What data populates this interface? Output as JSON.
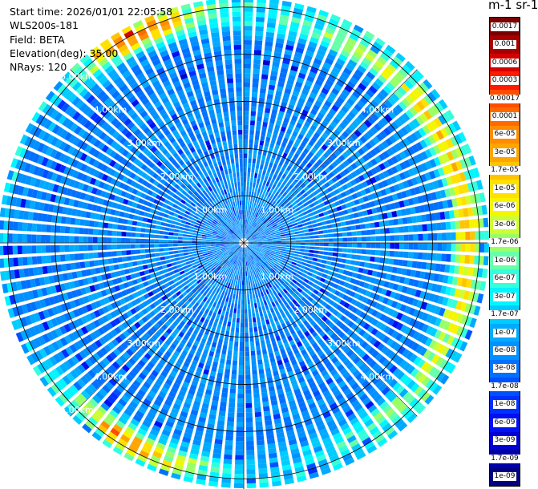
{
  "header": {
    "start_time": "Start time: 2026/01/01 22:05:58",
    "instrument": "WLS200s-181",
    "field": "Field: BETA",
    "elevation": "Elevation(deg): 35.00",
    "nrays": "NRays: 120"
  },
  "colorbar": {
    "title": "m-1 sr-1",
    "labels": [
      "0.0017",
      "0.001",
      "0.0006",
      "0.0003",
      "0.00017",
      "0.0001",
      "6e-05",
      "3e-05",
      "1.7e-05",
      "1e-05",
      "6e-06",
      "3e-06",
      "1.7e-06",
      "1e-06",
      "6e-07",
      "3e-07",
      "1.7e-07",
      "1e-07",
      "6e-08",
      "3e-08",
      "1.7e-08",
      "1e-08",
      "6e-09",
      "3e-09",
      "1.7e-09",
      "1e-09"
    ],
    "colors": [
      "#7a0000",
      "#a80000",
      "#d40000",
      "#ff1a00",
      "#ff4d00",
      "#ff6a00",
      "#ff8c00",
      "#ffa500",
      "#ffc400",
      "#ffe000",
      "#f5f500",
      "#ccff33",
      "#99ff66",
      "#66ffaa",
      "#33ffdd",
      "#00f5ff",
      "#00ccff",
      "#00aaff",
      "#0090ff",
      "#0070ff",
      "#0050ff",
      "#0030ff",
      "#0010f0",
      "#0000d0",
      "#0000a8",
      "#000080"
    ]
  },
  "chart_data": {
    "type": "heatmap",
    "projection": "polar-ppi",
    "field": "BETA",
    "units": "m-1 sr-1",
    "n_rays": 120,
    "elevation_deg": 35.0,
    "range_km_max": 5.2,
    "range_rings_km": [
      1,
      2,
      3,
      4,
      5
    ],
    "ring_labels": [
      "1.00km",
      "2.00km",
      "3.00km",
      "4.00km",
      "5.00km"
    ],
    "color_scale": "log",
    "color_range": [
      1e-09,
      0.0017
    ],
    "background_log10_range": [
      -7.6,
      -7.0
    ],
    "feature_band": {
      "range_km": [
        4.4,
        5.2
      ],
      "azimuth_deg_center": 80,
      "peak_value": 1e-05,
      "description_log10_peak": -5.0
    },
    "feature_patches": [
      {
        "azimuth_deg": [
          195,
          225
        ],
        "range_km": [
          4.6,
          5.1
        ],
        "peak_value": 3e-05
      },
      {
        "azimuth_deg": [
          320,
          345
        ],
        "range_km": [
          4.7,
          5.2
        ],
        "peak_value": 6e-05
      }
    ]
  }
}
